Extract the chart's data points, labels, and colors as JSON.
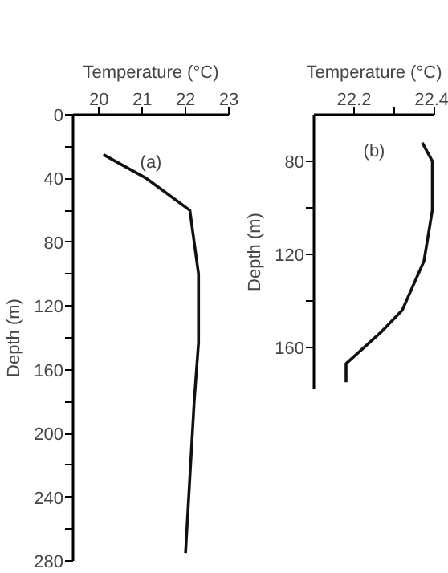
{
  "chart_data": [
    {
      "type": "line",
      "xlabel": "Temperature (°C)",
      "ylabel": "Depth (m)",
      "annotations": [
        "(a)"
      ],
      "color": "#111111",
      "line_style": "solid",
      "marker": "none",
      "grid": false,
      "x": [
        20.1,
        21.1,
        22.1,
        22.3,
        22.3,
        22.2,
        22.0
      ],
      "values": [
        25,
        40,
        60,
        100,
        143,
        180,
        275
      ],
      "xlim": [
        19.4,
        23
      ],
      "xticks": [
        20,
        21,
        22,
        23
      ],
      "ylim": [
        280,
        0
      ],
      "yticks": [
        0,
        {
          "value": 20,
          "label": null
        },
        40,
        {
          "value": 60,
          "label": null
        },
        80,
        {
          "value": 100,
          "label": null
        },
        120,
        {
          "value": 140,
          "label": null
        },
        160,
        {
          "value": 180,
          "label": null
        },
        200,
        {
          "value": 220,
          "label": null
        },
        240,
        {
          "value": 260,
          "label": null
        },
        280
      ]
    },
    {
      "type": "line",
      "xlabel": "Temperature (°C)",
      "ylabel": "Depth (m)",
      "annotations": [
        "(b)"
      ],
      "color": "#111111",
      "line_style": "solid",
      "marker": "none",
      "grid": false,
      "x": [
        22.37,
        22.395,
        22.395,
        22.374,
        22.32,
        22.27,
        22.18,
        22.18
      ],
      "values": [
        72,
        80,
        101,
        123,
        144,
        153,
        167,
        175
      ],
      "xlim": [
        22.1,
        22.4
      ],
      "xticks": [
        22.2,
        {
          "value": 22.3,
          "label": null
        },
        22.4
      ],
      "ylim": [
        178,
        60
      ],
      "yticks": [
        80,
        {
          "value": 100,
          "label": null
        },
        120,
        {
          "value": 140,
          "label": null
        },
        160
      ]
    }
  ]
}
